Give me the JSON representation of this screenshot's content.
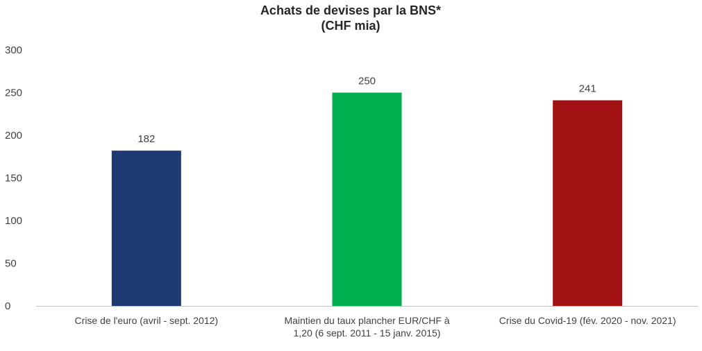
{
  "chart_data": {
    "type": "bar",
    "title": [
      "Achats de devises par la BNS*",
      "(CHF mia)"
    ],
    "categories": [
      [
        "Crise de l'euro (avril - sept. 2012)"
      ],
      [
        "Maintien du taux plancher EUR/CHF à",
        "1,20 (6 sept. 2011 - 15 janv. 2015)"
      ],
      [
        "Crise du Covid-19 (fév. 2020 - nov. 2021)"
      ]
    ],
    "values": [
      182,
      250,
      241
    ],
    "data_labels": [
      "182",
      "250",
      "241"
    ],
    "colors": [
      "#1f3a73",
      "#00b050",
      "#a11111"
    ],
    "ylim": [
      0,
      300
    ],
    "yticks": [
      0,
      50,
      100,
      150,
      200,
      250,
      300
    ],
    "grid": false,
    "legend": "none",
    "axis_color": "#bfbfbf"
  }
}
